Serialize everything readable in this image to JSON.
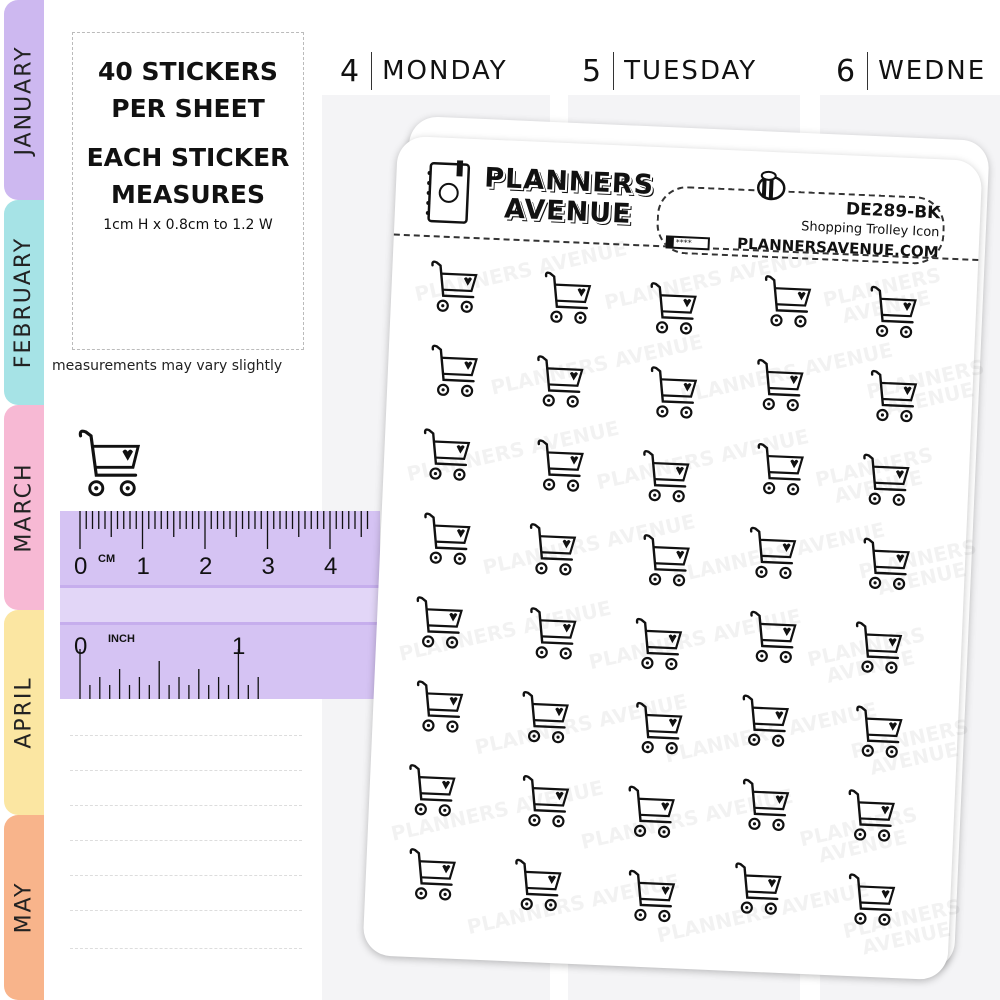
{
  "tabs": [
    {
      "label": "JANUARY",
      "color": "#cdb8f0"
    },
    {
      "label": "FEBRUARY",
      "color": "#a6e3e6"
    },
    {
      "label": "MARCH",
      "color": "#f7b9d4"
    },
    {
      "label": "APRIL",
      "color": "#fbe6a2"
    },
    {
      "label": "MAY",
      "color": "#f8b48b"
    }
  ],
  "info": {
    "line1": "40 STICKERS",
    "line2": "PER SHEET",
    "line3": "EACH STICKER",
    "line4": "MEASURES",
    "size": "1cm H  x  0.8cm to 1.2 W",
    "note": "measurements may vary slightly"
  },
  "days": [
    {
      "num": "4",
      "name": "MONDAY"
    },
    {
      "num": "5",
      "name": "TUESDAY"
    },
    {
      "num": "6",
      "name": "WEDNE"
    }
  ],
  "ruler": {
    "cm_unit": "CM",
    "cm_labels": [
      "0",
      "1",
      "2",
      "3",
      "4"
    ],
    "inch_unit": "INCH",
    "inch_labels": [
      "0",
      "1"
    ]
  },
  "sheet": {
    "brand_line1": "PLANNERS",
    "brand_line2": "AVENUE",
    "code": "DE289-BK",
    "name": "Shopping Trolley Icon",
    "website": "PLANNERSAVENUE.COM",
    "pencil_text": "****",
    "watermark": "PLANNERS AVENUE",
    "rows": 8,
    "cols": 5,
    "icon": "shopping-trolley-heart-icon"
  }
}
